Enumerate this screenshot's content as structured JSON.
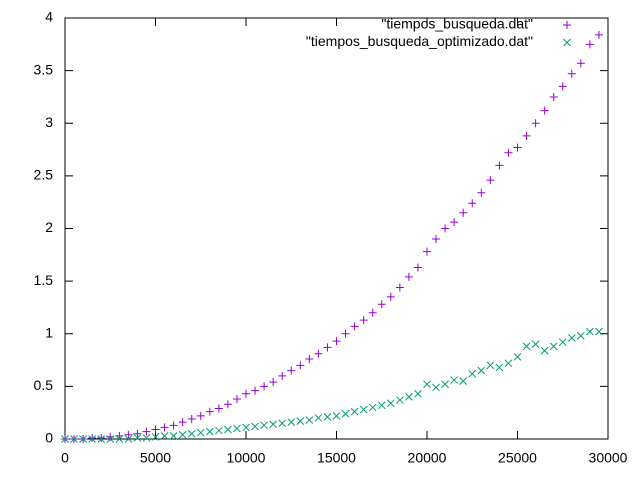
{
  "chart_data": {
    "type": "scatter",
    "xlim": [
      0,
      30000
    ],
    "xticks": [
      0,
      5000,
      10000,
      15000,
      20000,
      25000,
      30000
    ],
    "ylim": [
      0,
      4
    ],
    "yticks": [
      0,
      0.5,
      1,
      1.5,
      2,
      2.5,
      3,
      3.5,
      4
    ],
    "legend": "top-right",
    "x": [
      0,
      500,
      1000,
      1500,
      2000,
      2500,
      3000,
      3500,
      4000,
      4500,
      5000,
      5500,
      6000,
      6500,
      7000,
      7500,
      8000,
      8500,
      9000,
      9500,
      10000,
      10500,
      11000,
      11500,
      12000,
      12500,
      13000,
      13500,
      14000,
      14500,
      15000,
      15500,
      16000,
      16500,
      17000,
      17500,
      18000,
      18500,
      19000,
      19500,
      20000,
      20500,
      21000,
      21500,
      22000,
      22500,
      23000,
      23500,
      24000,
      24500,
      25000,
      25500,
      26000,
      26500,
      27000,
      27500,
      28000,
      28500,
      29000,
      29500
    ],
    "series": [
      {
        "name": "\"tiempos_busqueda.dat\"",
        "color": "#9400d3",
        "marker": "plus",
        "values": [
          0,
          0,
          0,
          0.01,
          0.01,
          0.02,
          0.03,
          0.04,
          0.05,
          0.07,
          0.09,
          0.11,
          0.13,
          0.16,
          0.19,
          0.22,
          0.26,
          0.29,
          0.33,
          0.38,
          0.43,
          0.46,
          0.5,
          0.54,
          0.6,
          0.65,
          0.7,
          0.76,
          0.81,
          0.87,
          0.93,
          1.0,
          1.07,
          1.13,
          1.2,
          1.28,
          1.35,
          1.44,
          1.54,
          1.63,
          1.78,
          1.9,
          2.0,
          2.06,
          2.15,
          2.24,
          2.34,
          2.46,
          2.6,
          2.72,
          2.77,
          2.88,
          3.0,
          3.12,
          3.25,
          3.35,
          3.47,
          3.57,
          3.75,
          3.84
        ]
      },
      {
        "name": "\"tiempos_busqueda_optimizado.dat\"",
        "color": "#009e73",
        "marker": "cross",
        "values": [
          0,
          0,
          0,
          0,
          0,
          0,
          0,
          0,
          0.01,
          0.01,
          0.02,
          0.03,
          0.03,
          0.04,
          0.05,
          0.06,
          0.07,
          0.08,
          0.09,
          0.1,
          0.11,
          0.12,
          0.13,
          0.14,
          0.15,
          0.16,
          0.17,
          0.18,
          0.2,
          0.21,
          0.22,
          0.24,
          0.26,
          0.28,
          0.3,
          0.32,
          0.34,
          0.37,
          0.4,
          0.43,
          0.52,
          0.49,
          0.52,
          0.56,
          0.55,
          0.62,
          0.65,
          0.7,
          0.68,
          0.72,
          0.78,
          0.88,
          0.9,
          0.84,
          0.88,
          0.92,
          0.96,
          0.98,
          1.02,
          1.02
        ]
      }
    ]
  }
}
